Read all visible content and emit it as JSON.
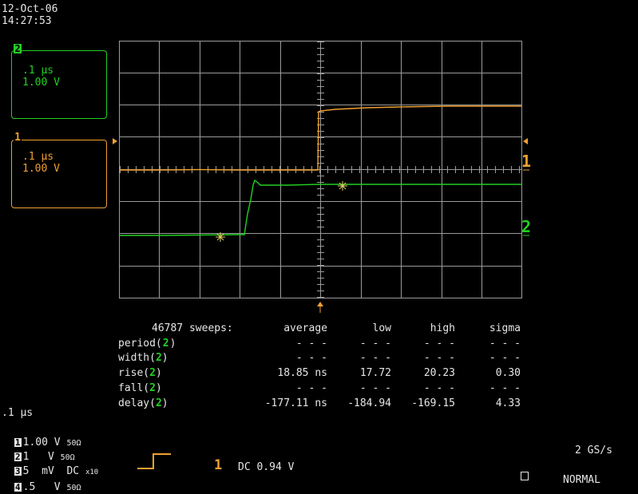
{
  "header": {
    "date": "12-Oct-06",
    "time": "14:27:53"
  },
  "channel2_box": {
    "num": "2",
    "timebase": ".1 µs",
    "volts": "1.00 V"
  },
  "channel1_box": {
    "num": "1",
    "timebase": ".1 µs",
    "volts": "1.00 V"
  },
  "trace_labels": {
    "ch1": "1",
    "ch2": "2"
  },
  "measurements": {
    "header": {
      "sweeps": "46787 sweeps:",
      "cols": [
        "average",
        "low",
        "high",
        "sigma"
      ]
    },
    "rows": [
      {
        "label": "period(",
        "ch": "2",
        "close": ")",
        "vals": [
          "- - -",
          "- - -",
          "- - -",
          "- - -"
        ]
      },
      {
        "label": "width(",
        "ch": "2",
        "close": ")",
        "vals": [
          "- - -",
          "- - -",
          "- - -",
          "- - -"
        ]
      },
      {
        "label": "rise(",
        "ch": "2",
        "close": ")",
        "vals": [
          "18.85 ns",
          "17.72",
          "20.23",
          "0.30"
        ]
      },
      {
        "label": "fall(",
        "ch": "2",
        "close": ")",
        "vals": [
          "- - -",
          "- - -",
          "- - -",
          "- - -"
        ]
      },
      {
        "label": "delay(",
        "ch": "2",
        "close": ")",
        "vals": [
          "-177.11 ns",
          "-184.94",
          "-169.15",
          "4.33"
        ]
      }
    ]
  },
  "bottom": {
    "timebase": ".1 µs",
    "ch_list": [
      {
        "n": "1",
        "v": "1.00 V",
        "c": "50Ω"
      },
      {
        "n": "2",
        "v": "1   V",
        "c": "50Ω"
      },
      {
        "n": "3",
        "v": "5  mV",
        "c": "DC",
        "extra": "x10"
      },
      {
        "n": "4",
        "v": ".5   V",
        "c": "50Ω"
      }
    ],
    "trigger_ch": "1",
    "trigger_text": "DC 0.94 V",
    "sample_rate": "2 GS/s",
    "mode": "NORMAL"
  },
  "colors": {
    "ch1": "#f0a030",
    "ch2": "#22d022",
    "grid": "#9a9a9a",
    "text": "#e6e6e6"
  }
}
